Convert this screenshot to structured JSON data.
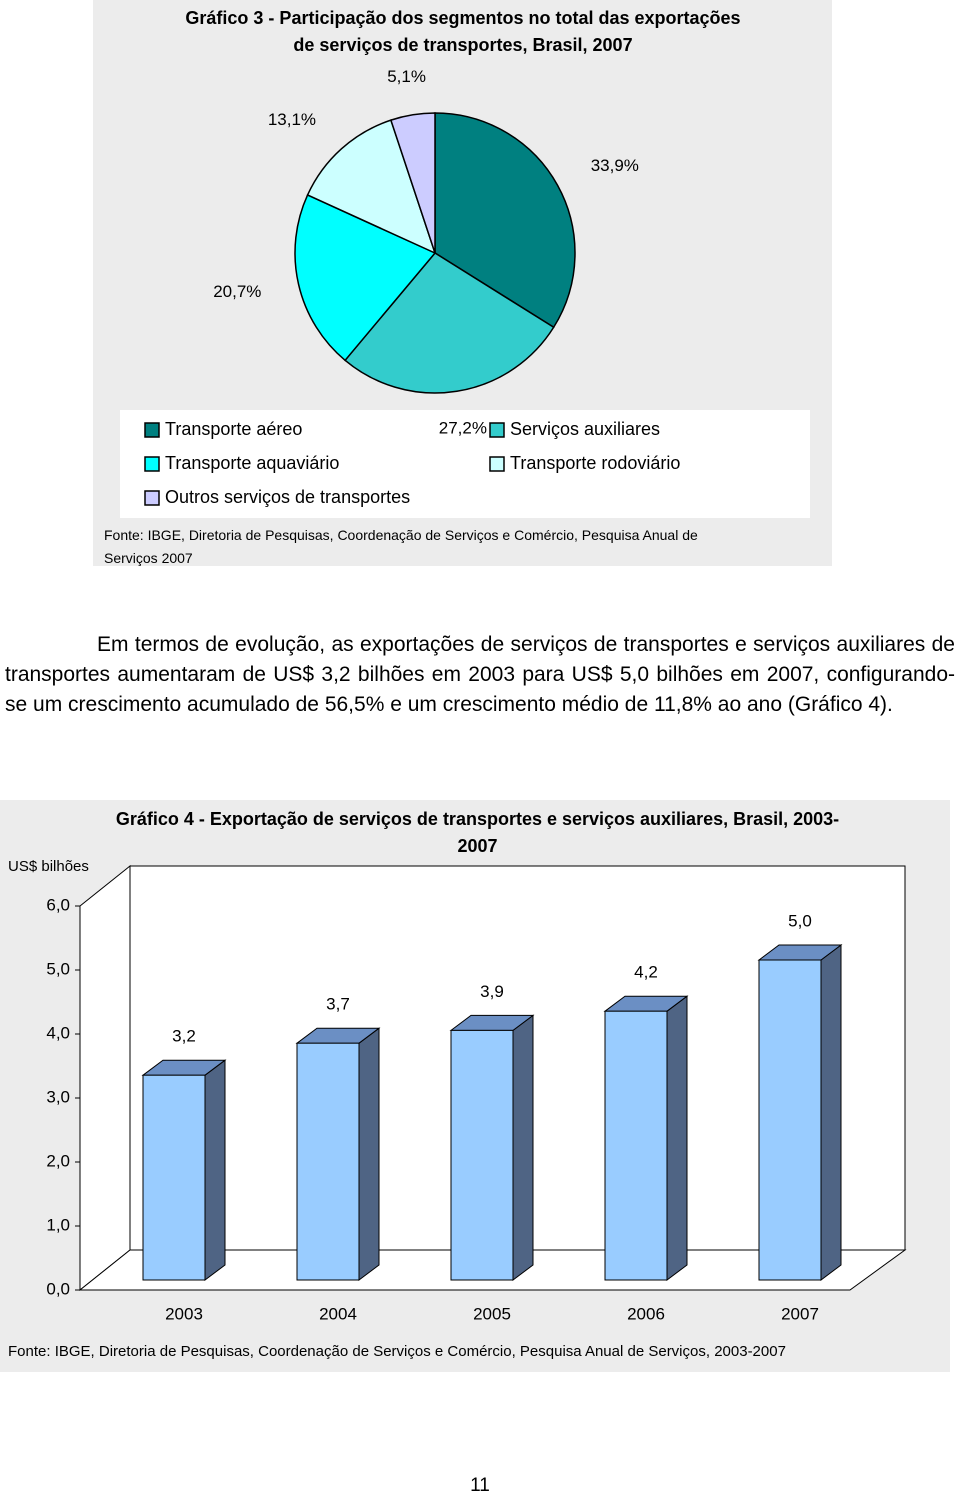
{
  "chart_data": [
    {
      "type": "pie",
      "title": "Gráfico 3 - Participação dos segmentos no total das exportações de serviços de transportes, Brasil, 2007",
      "categories": [
        "Transporte aéreo",
        "Serviços auxiliares",
        "Transporte aquaviário",
        "Transporte rodoviário",
        "Outros serviços de transportes"
      ],
      "values": [
        33.9,
        27.2,
        20.7,
        13.1,
        5.1
      ],
      "value_labels": [
        "33,9%",
        "27,2%",
        "20,7%",
        "13,1%",
        "5,1%"
      ],
      "colors": [
        "#008080",
        "#33cccc",
        "#00ffff",
        "#ccffff",
        "#ccccff"
      ],
      "source": "Fonte: IBGE, Diretoria de Pesquisas, Coordenação de Serviços e Comércio, Pesquisa Anual de Serviços 2007"
    },
    {
      "type": "bar",
      "title": "Gráfico 4 - Exportação de serviços de transportes e serviços auxiliares, Brasil, 2003-2007",
      "ylabel": "US$ bilhões",
      "categories": [
        "2003",
        "2004",
        "2005",
        "2006",
        "2007"
      ],
      "values": [
        3.2,
        3.7,
        3.9,
        4.2,
        5.0
      ],
      "value_labels": [
        "3,2",
        "3,7",
        "3,9",
        "4,2",
        "5,0"
      ],
      "color": "#99ccff",
      "ylim": [
        0,
        6
      ],
      "yticks": [
        {
          "value": 0,
          "label": "0,0"
        },
        {
          "value": 1,
          "label": "1,0"
        },
        {
          "value": 2,
          "label": "2,0"
        },
        {
          "value": 3,
          "label": "3,0"
        },
        {
          "value": 4,
          "label": "4,0"
        },
        {
          "value": 5,
          "label": "5,0"
        },
        {
          "value": 6,
          "label": "6,0"
        }
      ],
      "source": "Fonte: IBGE, Diretoria de Pesquisas, Coordenação de Serviços e Comércio, Pesquisa Anual de Serviços, 2003-2007"
    }
  ],
  "paragraph": "Em termos de evolução, as exportações de serviços de transportes e serviços auxiliares de transportes aumentaram de US$ 3,2 bilhões em 2003 para US$ 5,0 bilhões em 2007, configurando-se um crescimento acumulado de 56,5% e um crescimento médio de 11,8% ao ano (Gráfico 4).",
  "page_number": "11"
}
